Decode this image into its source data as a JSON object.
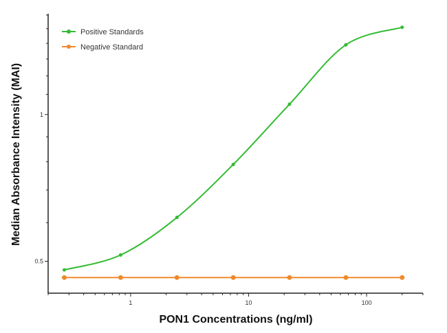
{
  "chart_data": {
    "type": "line",
    "title": "",
    "xlabel": "PON1 Concentrations (ng/ml)",
    "ylabel": "Median Absorbance Intensity (MAI)",
    "xscale": "log",
    "yscale": "log",
    "xlim": [
      0.2,
      300
    ],
    "ylim": [
      0.43,
      1.61
    ],
    "xticks": [
      {
        "v": 1,
        "label": "1"
      },
      {
        "v": 10,
        "label": "10"
      },
      {
        "v": 100,
        "label": "100"
      }
    ],
    "yticks": [
      {
        "v": 0.5,
        "label": "0.5"
      },
      {
        "v": 1,
        "label": "1"
      }
    ],
    "grid": false,
    "legend_position": "top-left",
    "series": [
      {
        "name": "Positive Standards",
        "color": "#33bb33",
        "smooth": true,
        "x": [
          0.274,
          0.823,
          2.47,
          7.41,
          22.2,
          66.7,
          200
        ],
        "y": [
          0.48,
          0.515,
          0.615,
          0.79,
          1.05,
          1.39,
          1.51
        ]
      },
      {
        "name": "Negative Standard",
        "color": "#f08a2c",
        "smooth": false,
        "x": [
          0.274,
          0.823,
          2.47,
          7.41,
          22.2,
          66.7,
          200
        ],
        "y": [
          0.463,
          0.463,
          0.463,
          0.463,
          0.463,
          0.463,
          0.463
        ]
      }
    ]
  }
}
